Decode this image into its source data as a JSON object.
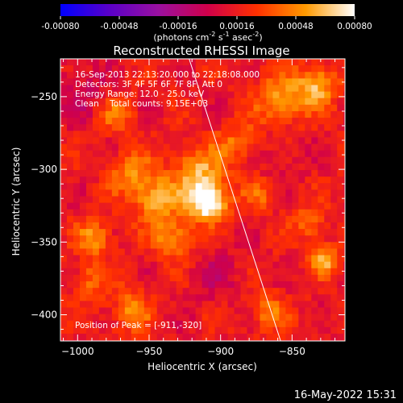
{
  "chart_data": {
    "type": "heatmap",
    "title": "Reconstructed RHESSI Image",
    "colorbar": {
      "ticks": [
        "-0.00080",
        "-0.00048",
        "-0.00016",
        "0.00016",
        "0.00048",
        "0.00080"
      ],
      "range": [
        -0.0008,
        0.0008
      ],
      "label_main": "(photons cm",
      "label_sup1": "-2",
      "label_mid1": " s",
      "label_sup2": "-1",
      "label_mid2": " asec",
      "label_sup3": "-2",
      "label_end": ")",
      "colormap": [
        "#0000ff",
        "#5a00c8",
        "#9a10a0",
        "#d0004a",
        "#ff3000",
        "#ff9a00",
        "#ffffff"
      ]
    },
    "xlabel": "Heliocentric X (arcsec)",
    "ylabel": "Heliocentric Y (arcsec)",
    "xlim": [
      -1012,
      -813
    ],
    "ylim": [
      -418,
      -224
    ],
    "xticks": [
      -1000,
      -950,
      -900,
      -850
    ],
    "yticks": [
      -250,
      -300,
      -350,
      -400
    ],
    "info_lines": [
      "16-Sep-2013 22:13:20.000 to 22:18:08.000",
      "Detectors: 3F 4F 5F 6F 7F 8F, Att 0",
      "Energy Range: 12.0 - 25.0 keV",
      "Clean    Total counts: 9.15E+03"
    ],
    "peak_label": "Position of Peak = [-911,-320]",
    "peak": [
      -911,
      -320
    ],
    "limb_line": [
      [
        -922,
        -224
      ],
      [
        -858,
        -418
      ]
    ],
    "sources": [
      {
        "x": -911,
        "y": -320,
        "amp": 1.0,
        "s": 9
      },
      {
        "x": -918,
        "y": -300,
        "amp": 0.55,
        "s": 12
      },
      {
        "x": -948,
        "y": -318,
        "amp": 0.6,
        "s": 11
      },
      {
        "x": -935,
        "y": -345,
        "amp": 0.5,
        "s": 10
      },
      {
        "x": -965,
        "y": -300,
        "amp": 0.4,
        "s": 10
      },
      {
        "x": -890,
        "y": -280,
        "amp": 0.35,
        "s": 10
      },
      {
        "x": -990,
        "y": -345,
        "amp": 0.45,
        "s": 9
      },
      {
        "x": -975,
        "y": -260,
        "amp": 0.35,
        "s": 9
      },
      {
        "x": -860,
        "y": -250,
        "amp": 0.5,
        "s": 12
      },
      {
        "x": -835,
        "y": -240,
        "amp": 0.55,
        "s": 10
      },
      {
        "x": -875,
        "y": -315,
        "amp": 0.3,
        "s": 8
      },
      {
        "x": -840,
        "y": -335,
        "amp": 0.35,
        "s": 8
      },
      {
        "x": -830,
        "y": -360,
        "amp": 0.55,
        "s": 7
      },
      {
        "x": -870,
        "y": -395,
        "amp": 0.4,
        "s": 9
      },
      {
        "x": -965,
        "y": -395,
        "amp": 0.4,
        "s": 10
      },
      {
        "x": -995,
        "y": -375,
        "amp": 0.35,
        "s": 8
      },
      {
        "x": -1000,
        "y": -245,
        "amp": -0.2,
        "s": 14
      },
      {
        "x": -905,
        "y": -370,
        "amp": -0.15,
        "s": 16
      },
      {
        "x": -860,
        "y": -290,
        "amp": -0.1,
        "s": 14
      }
    ]
  },
  "footer": {
    "date": "16-May-2022 15:31"
  }
}
